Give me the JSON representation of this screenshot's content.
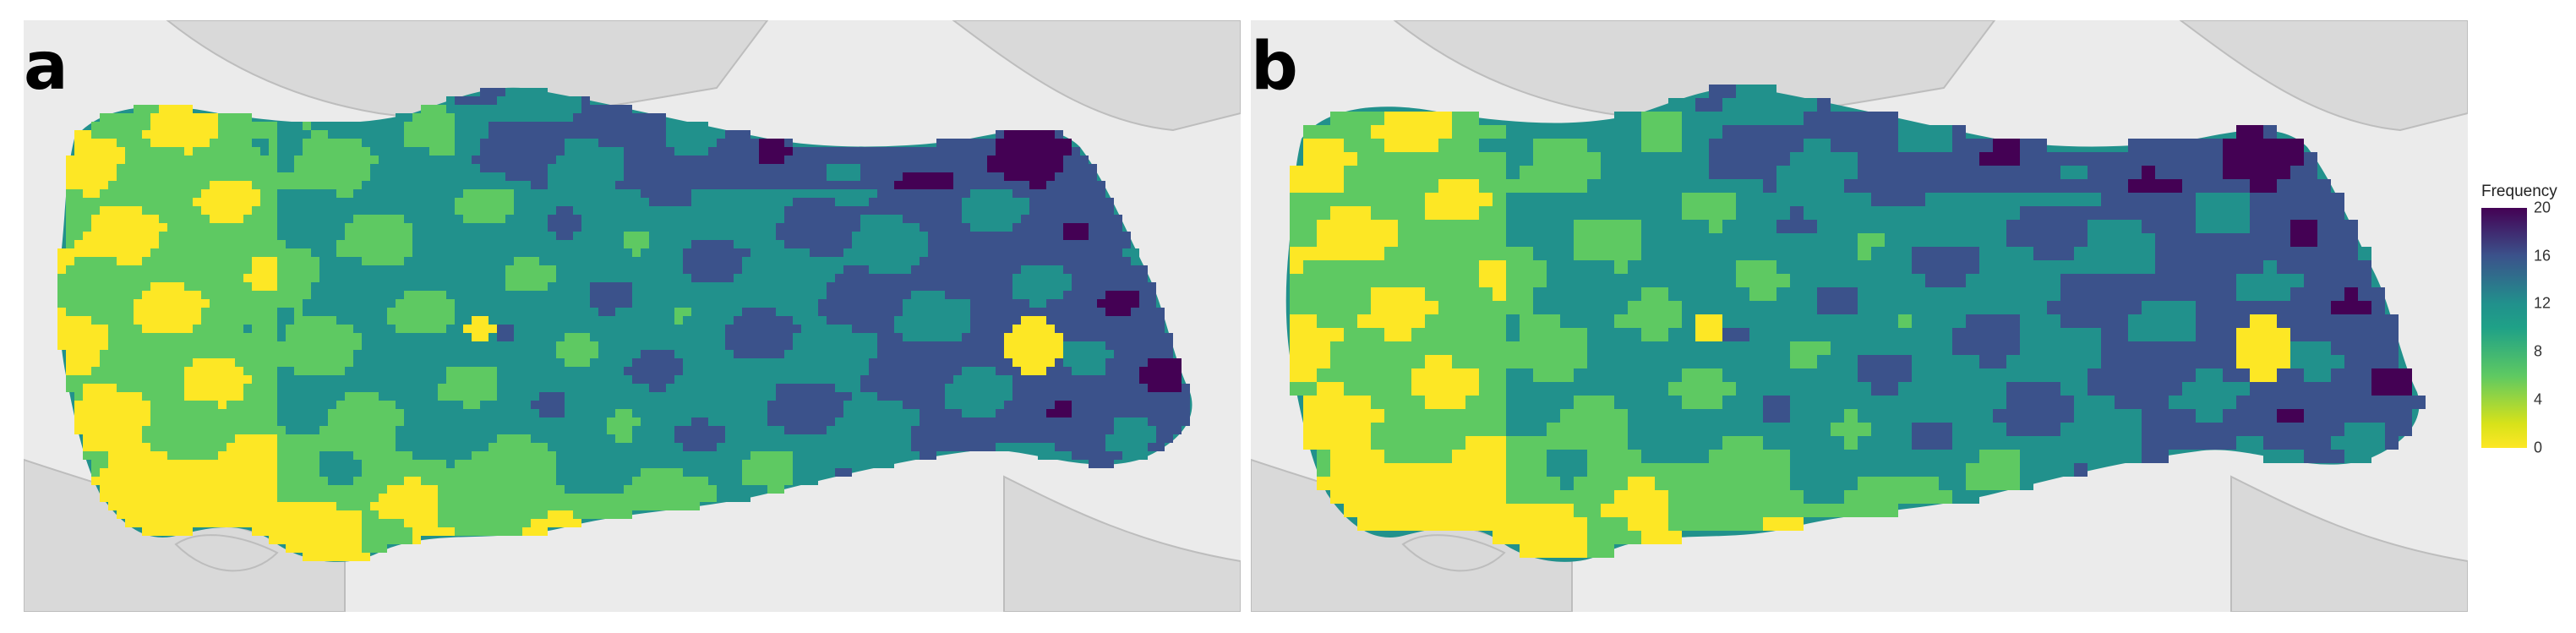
{
  "panels": [
    {
      "label": "a",
      "resolution": "fine"
    },
    {
      "label": "b",
      "resolution": "coarse"
    }
  ],
  "legend": {
    "title": "Frequency",
    "ticks": [
      "20",
      "16",
      "12",
      "8",
      "4",
      "0"
    ],
    "colors": [
      "#440154",
      "#3b528b",
      "#21918c",
      "#5ec962",
      "#fde725"
    ]
  },
  "background_color": "#ebebeb",
  "land_color": "#d9d9d9"
}
